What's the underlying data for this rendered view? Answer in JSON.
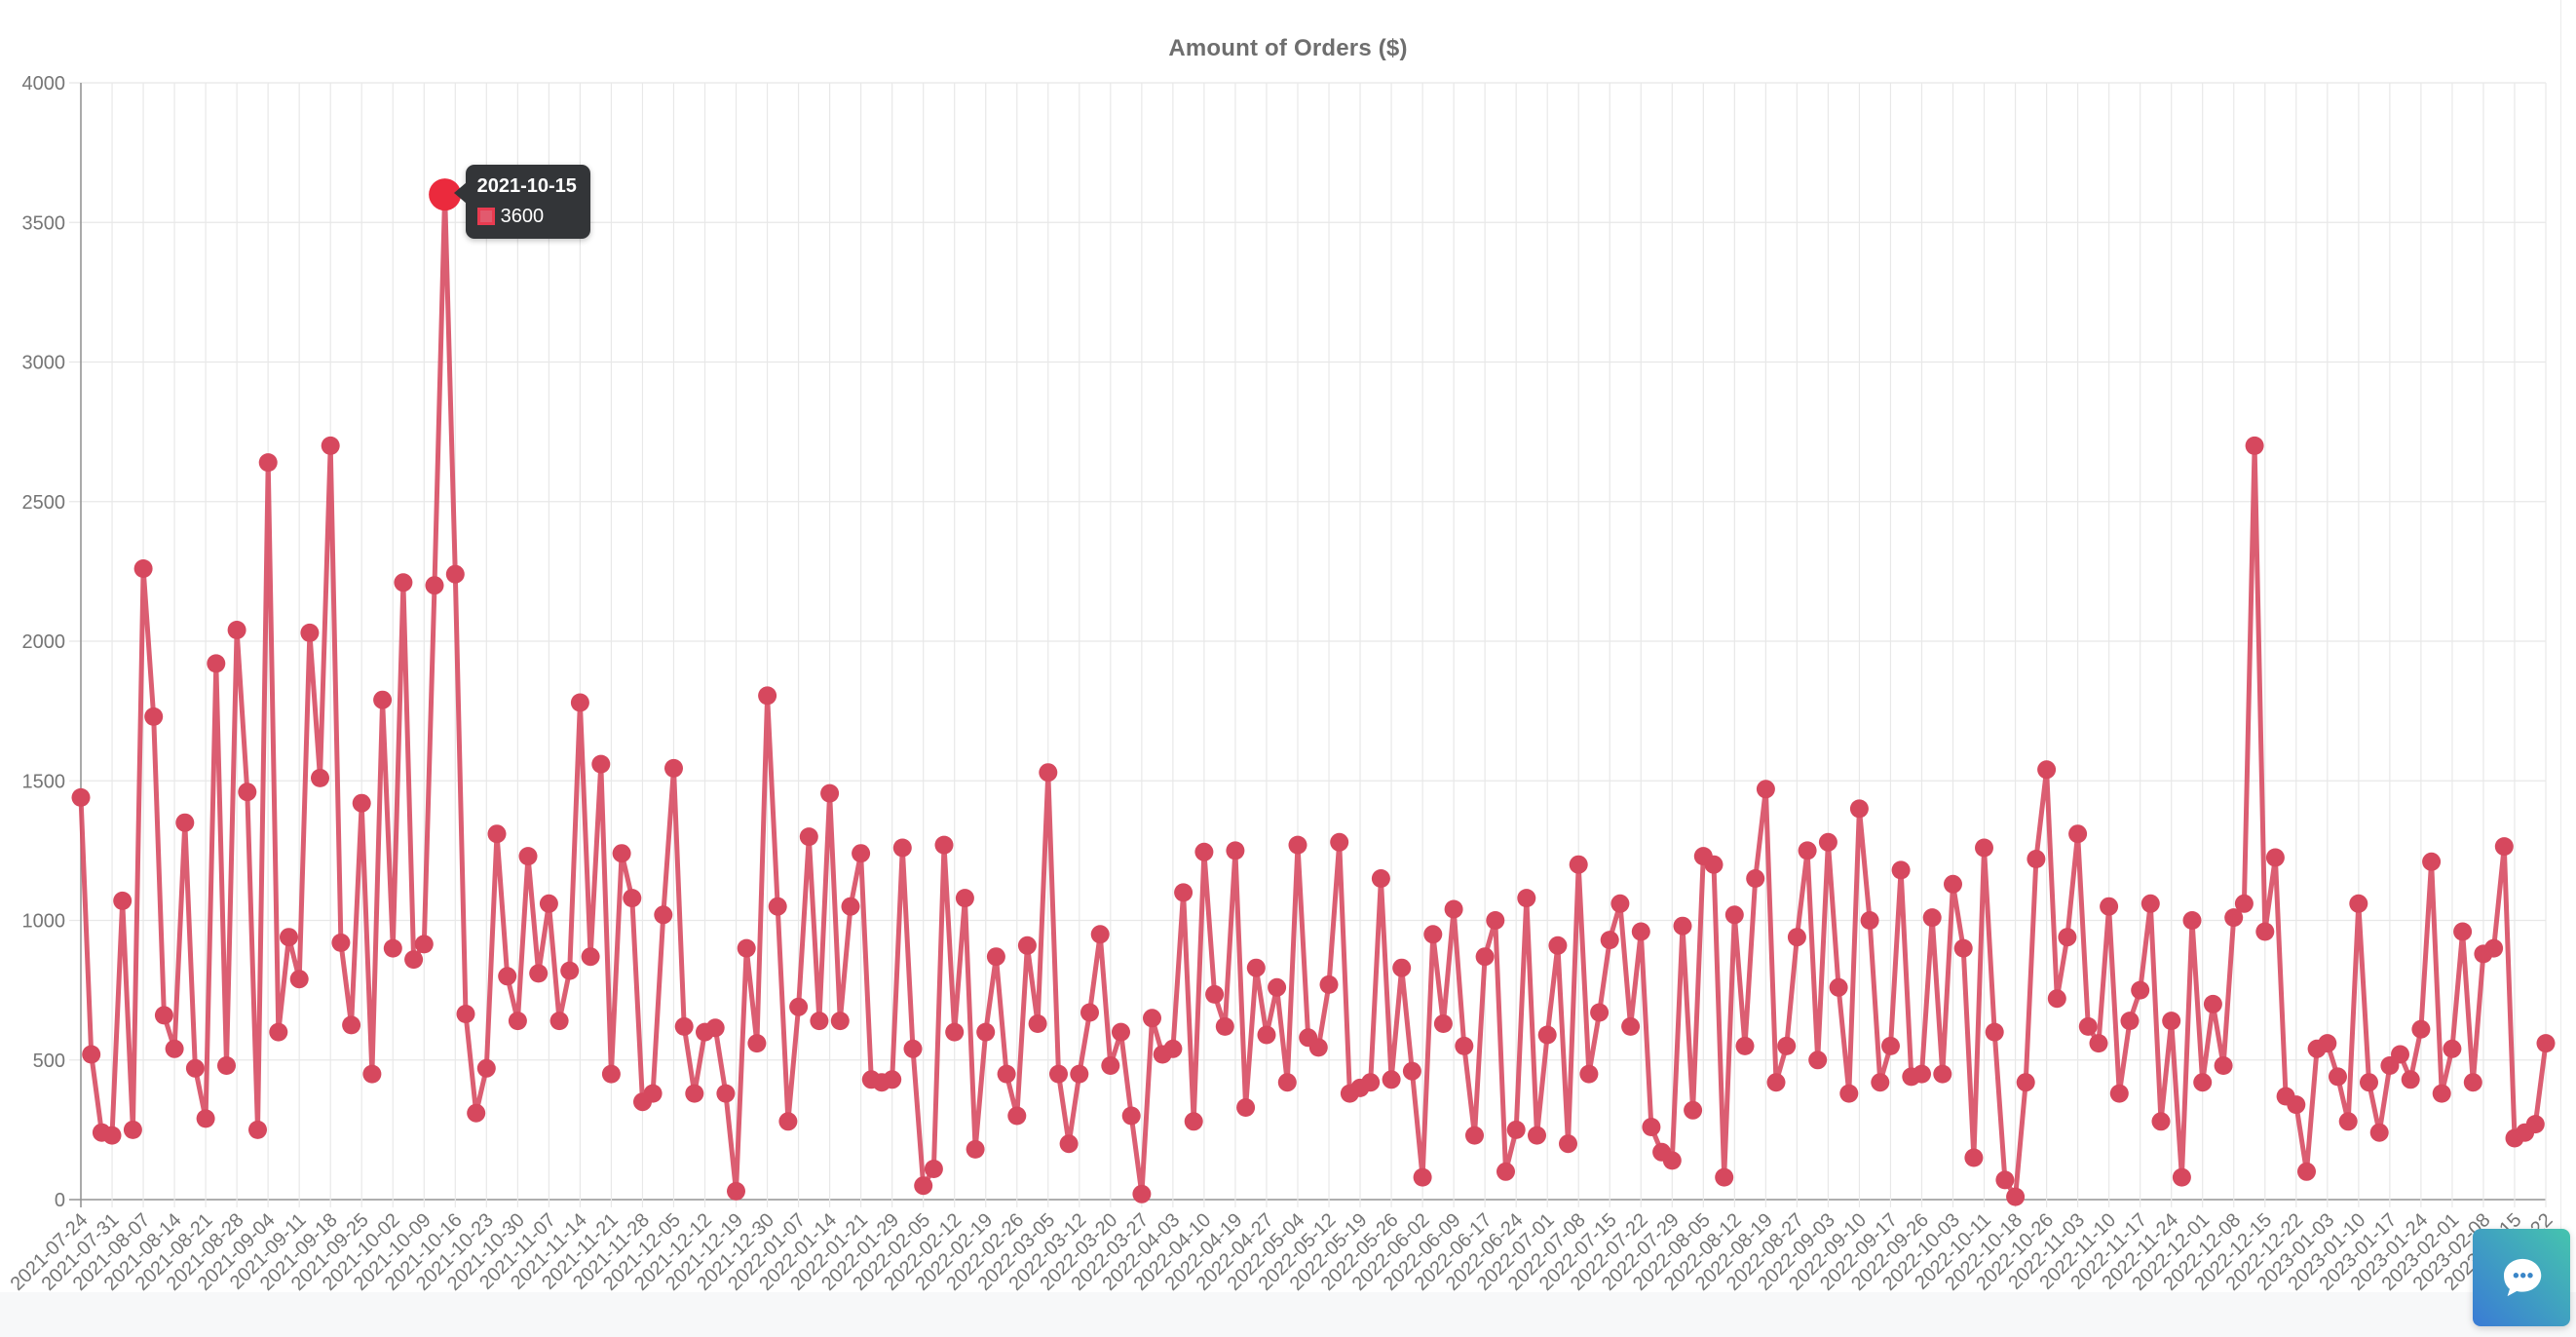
{
  "chart_data": {
    "type": "line",
    "title": "Amount of Orders ($)",
    "xlabel": "",
    "ylabel": "",
    "ylim": [
      0,
      4000
    ],
    "ytick_step": 500,
    "y_tick_labels": [
      "0",
      "500",
      "1000",
      "1500",
      "2000",
      "2500",
      "3000",
      "3500",
      "4000"
    ],
    "grid": true,
    "legend_position": "none",
    "label_every": 3,
    "x_labels": [
      "2021-07-24",
      "2021-07-31",
      "2021-08-07",
      "2021-08-14",
      "2021-08-21",
      "2021-08-28",
      "2021-09-04",
      "2021-09-11",
      "2021-09-18",
      "2021-09-25",
      "2021-10-02",
      "2021-10-09",
      "2021-10-16",
      "2021-10-23",
      "2021-10-30",
      "2021-11-07",
      "2021-11-14",
      "2021-11-21",
      "2021-11-28",
      "2021-12-05",
      "2021-12-12",
      "2021-12-19",
      "2021-12-30",
      "2022-01-07",
      "2022-01-14",
      "2022-01-21",
      "2022-01-29",
      "2022-02-05",
      "2022-02-12",
      "2022-02-19",
      "2022-02-26",
      "2022-03-05",
      "2022-03-12",
      "2022-03-20",
      "2022-03-27",
      "2022-04-03",
      "2022-04-10",
      "2022-04-19",
      "2022-04-27",
      "2022-05-04",
      "2022-05-12",
      "2022-05-19",
      "2022-05-26",
      "2022-06-02",
      "2022-06-09",
      "2022-06-17",
      "2022-06-24",
      "2022-07-01",
      "2022-07-08",
      "2022-07-15",
      "2022-07-22",
      "2022-07-29",
      "2022-08-05",
      "2022-08-12",
      "2022-08-19",
      "2022-08-27",
      "2022-09-03",
      "2022-09-10",
      "2022-09-17",
      "2022-09-26",
      "2022-10-03",
      "2022-10-11",
      "2022-10-18",
      "2022-10-26",
      "2022-11-03",
      "2022-11-10",
      "2022-11-17",
      "2022-11-24",
      "2022-12-01",
      "2022-12-08",
      "2022-12-15",
      "2022-12-22",
      "2023-01-03",
      "2023-01-10",
      "2023-01-17",
      "2023-01-24",
      "2023-02-01",
      "2023-02-08",
      "2023-02-15",
      "2023-02-22"
    ],
    "values": [
      1440,
      520,
      240,
      230,
      1070,
      250,
      2260,
      1730,
      660,
      540,
      1350,
      470,
      290,
      1920,
      480,
      2040,
      1460,
      250,
      2640,
      600,
      940,
      790,
      2030,
      1510,
      2700,
      920,
      625,
      1420,
      450,
      1790,
      900,
      2210,
      860,
      915,
      2200,
      3600,
      2240,
      665,
      310,
      470,
      1310,
      800,
      640,
      1230,
      810,
      1060,
      640,
      820,
      1780,
      870,
      1560,
      450,
      1240,
      1080,
      350,
      380,
      1020,
      1545,
      620,
      380,
      600,
      615,
      380,
      30,
      900,
      560,
      1805,
      1050,
      280,
      690,
      1300,
      640,
      1455,
      640,
      1050,
      1240,
      430,
      420,
      430,
      1260,
      540,
      50,
      110,
      1270,
      600,
      1080,
      180,
      600,
      870,
      450,
      300,
      910,
      630,
      1530,
      450,
      200,
      450,
      670,
      950,
      480,
      600,
      300,
      20,
      650,
      520,
      540,
      1100,
      280,
      1245,
      735,
      620,
      1250,
      330,
      830,
      590,
      760,
      420,
      1270,
      580,
      545,
      770,
      1280,
      380,
      400,
      420,
      1150,
      430,
      830,
      460,
      80,
      950,
      630,
      1040,
      550,
      230,
      870,
      1000,
      100,
      250,
      1080,
      230,
      590,
      910,
      200,
      1200,
      450,
      670,
      930,
      1060,
      620,
      960,
      260,
      170,
      140,
      980,
      320,
      1230,
      1200,
      80,
      1020,
      550,
      1150,
      1470,
      420,
      550,
      940,
      1250,
      500,
      1280,
      760,
      380,
      1400,
      1000,
      420,
      550,
      1180,
      440,
      450,
      1010,
      450,
      1130,
      900,
      150,
      1260,
      600,
      70,
      10,
      420,
      1220,
      1540,
      720,
      940,
      1310,
      620,
      560,
      1050,
      380,
      640,
      750,
      1060,
      280,
      640,
      80,
      1000,
      420,
      700,
      480,
      1010,
      1060,
      2700,
      960,
      1225,
      370,
      340,
      100,
      540,
      560,
      440,
      280,
      1060,
      420,
      240,
      480,
      520,
      430,
      610,
      1210,
      380,
      540,
      960,
      420,
      880,
      900,
      1265,
      220,
      240,
      270,
      560
    ],
    "highlight": {
      "index": 35,
      "date": "2021-10-15",
      "value": 3600,
      "value_label": "3600"
    }
  },
  "colors": {
    "line": "#d6485e",
    "point": "#d6485e",
    "hover_point": "#eb2a3d",
    "grid": "#e8e8e8",
    "axis": "#949494",
    "tick_text": "#757575",
    "title_text": "#6e6e6e",
    "tooltip_bg": "#333538",
    "tooltip_text": "#ffffff",
    "swatch_fill": "#e25a6e",
    "swatch_border": "#e93b50",
    "footer_strip": "#f7f8f9",
    "right_edge": "#ececec",
    "chat_gradient_start": "#45c4ae",
    "chat_gradient_end": "#3a7bd5",
    "chat_dots": "#3a86c8"
  },
  "chat_widget": {
    "icon": "chat-bubble-icon"
  }
}
